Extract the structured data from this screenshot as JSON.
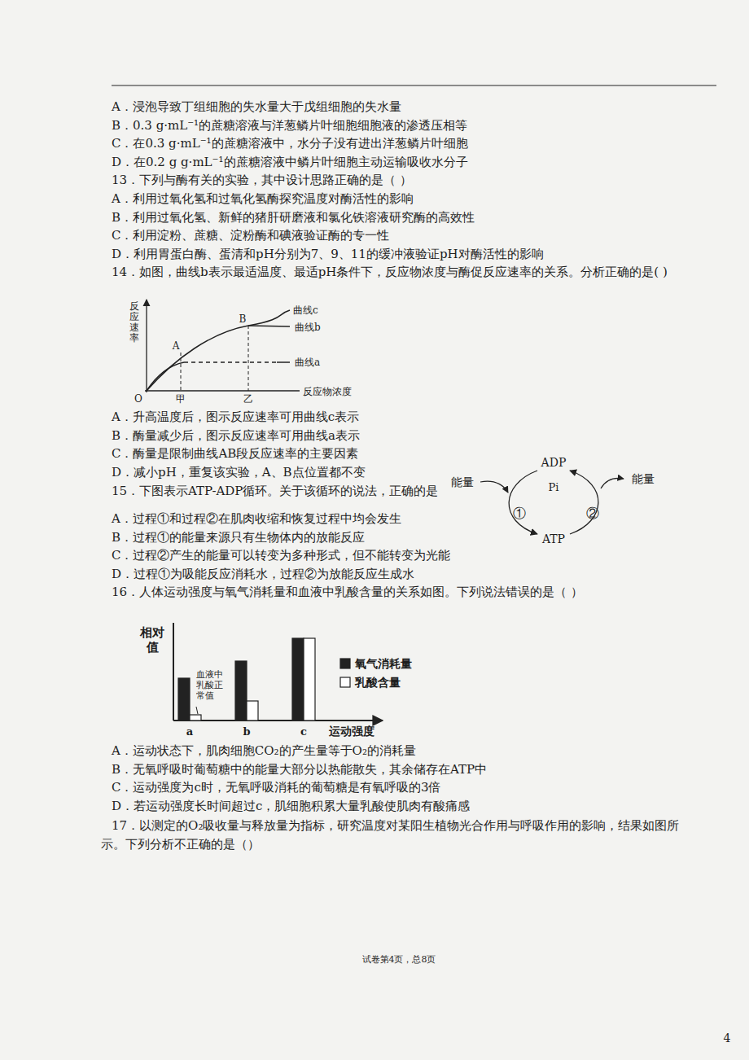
{
  "page": {
    "q12_options": [
      "A．浸泡导致丁组细胞的失水量大于戊组细胞的失水量",
      "B．0.3 g·mL⁻¹的蔗糖溶液与洋葱鳞片叶细胞细胞液的渗透压相等",
      "C．在0.3 g·mL⁻¹的蔗糖溶液中，水分子没有进出洋葱鳞片叶细胞",
      "D．在0.2 g g·mL⁻¹的蔗糖溶液中鳞片叶细胞主动运输吸收水分子"
    ],
    "q13": {
      "stem": "13．下列与酶有关的实验，其中设计思路正确的是（    ）",
      "options": [
        "A．利用过氧化氢和过氧化氢酶探究温度对酶活性的影响",
        "B．利用过氧化氢、新鲜的猪肝研磨液和氯化铁溶液研究酶的高效性",
        "C．利用淀粉、蔗糖、淀粉酶和碘液验证酶的专一性",
        "D．利用胃蛋白酶、蛋清和pH分别为7、9、11的缓冲液验证pH对酶活性的影响"
      ]
    },
    "q14": {
      "stem": "14．如图，曲线b表示最适温度、最适pH条件下，反应物浓度与酶促反应速率的关系。分析正确的是(    )",
      "figure": {
        "y_label": "反应速率",
        "x_label": "反应物浓度",
        "origin": "O",
        "x_marks": [
          "甲",
          "乙"
        ],
        "points": [
          "A",
          "B"
        ],
        "curves": [
          "曲线c",
          "曲线b",
          "曲线a"
        ]
      },
      "options": [
        "A．升高温度后，图示反应速率可用曲线c表示",
        "B．酶量减少后，图示反应速率可用曲线a表示",
        "C．酶量是限制曲线AB段反应速率的主要因素",
        "D．减小pH，重复该实验，A、B点位置都不变"
      ]
    },
    "q15": {
      "stem": "15．下图表示ATP-ADP循环。关于该循环的说法，正确的是",
      "figure": {
        "top": "ADP",
        "center": "Pi",
        "bottom": "ATP",
        "left": "能量",
        "right": "能量",
        "steps": [
          "①",
          "②"
        ]
      },
      "options": [
        "A．过程①和过程②在肌肉收缩和恢复过程中均会发生",
        "B．过程①的能量来源只有生物体内的放能反应",
        "C．过程②产生的能量可以转变为多种形式，但不能转变为光能",
        "D．过程①为吸能反应消耗水，过程②为放能反应生成水"
      ]
    },
    "q16": {
      "stem": "16．人体运动强度与氧气消耗量和血液中乳酸含量的关系如图。下列说法错误的是（    ）",
      "options": [
        "A．运动状态下，肌肉细胞CO₂的产生量等于O₂的消耗量",
        "B．无氧呼吸时葡萄糖中的能量大部分以热能散失，其余储存在ATP中",
        "C．运动强度为c时，无氧呼吸消耗的葡萄糖是有氧呼吸的3倍",
        "D．若运动强度长时间超过c，肌细胞积累大量乳酸使肌肉有酸痛感"
      ]
    },
    "q17": {
      "stem_lines": [
        "17．以测定的O₂吸收量与释放量为指标，研究温度对某阳生植物光合作用与呼吸作用的影响，结果如图所",
        "示。下列分析不正确的是（）"
      ]
    },
    "footer": "试卷第4页，总8页",
    "page_number": "4"
  },
  "chart_data": {
    "type": "bar",
    "y_label": "相对值",
    "x_label": "运动强度",
    "annotation": "血液中乳酸正常值",
    "categories": [
      "a",
      "b",
      "c"
    ],
    "series": [
      {
        "name": "氧气消耗量",
        "color": "#222222",
        "values": [
          5.2,
          7.3,
          10.1
        ]
      },
      {
        "name": "乳酸含量",
        "color": "#ffffff",
        "values": [
          0.7,
          2.4,
          10.1
        ]
      }
    ],
    "ylim": [
      0,
      12
    ],
    "tick_labels": "x",
    "legend": "right"
  }
}
